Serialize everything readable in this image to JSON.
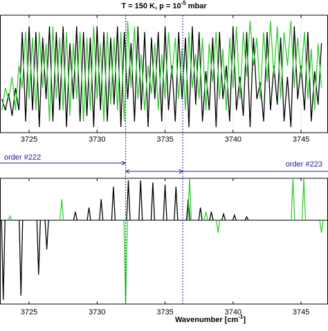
{
  "title": {
    "text": "T = 150 K, p = 10",
    "sup": "-5",
    "tail": "mbar"
  },
  "annotations": [
    {
      "text": "order #222"
    },
    {
      "text": "order #223"
    }
  ],
  "vlines": [
    3732.1,
    3736.3
  ],
  "chart_data": [
    {
      "type": "line",
      "xlim": [
        3722.86,
        3746.98
      ],
      "xticks": [
        3725,
        3730,
        3735,
        3740,
        3745
      ],
      "ylim": [
        0,
        1.05
      ],
      "grid": true,
      "x": [
        3723,
        3723.25,
        3723.5,
        3723.75,
        3724,
        3724.25,
        3724.5,
        3724.75,
        3725,
        3725.25,
        3725.5,
        3725.75,
        3726,
        3726.25,
        3726.5,
        3726.75,
        3727,
        3727.25,
        3727.5,
        3727.75,
        3728,
        3728.25,
        3728.5,
        3728.75,
        3729,
        3729.25,
        3729.5,
        3729.75,
        3730,
        3730.25,
        3730.5,
        3730.75,
        3731,
        3731.25,
        3731.5,
        3731.75,
        3732,
        3732.25,
        3732.5,
        3732.75,
        3733,
        3733.25,
        3733.5,
        3733.75,
        3734,
        3734.25,
        3734.5,
        3734.75,
        3735,
        3735.25,
        3735.5,
        3735.75,
        3736,
        3736.25,
        3736.5,
        3736.75,
        3737,
        3737.25,
        3737.5,
        3737.75,
        3738,
        3738.25,
        3738.5,
        3738.75,
        3739,
        3739.25,
        3739.5,
        3739.75,
        3740,
        3740.25,
        3740.5,
        3740.75,
        3741,
        3741.25,
        3741.5,
        3741.75,
        3742,
        3742.25,
        3742.5,
        3742.75,
        3743,
        3743.25,
        3743.5,
        3743.75,
        3744,
        3744.25,
        3744.5,
        3744.75,
        3745,
        3745.25,
        3745.5,
        3745.75,
        3746,
        3746.25,
        3746.5
      ],
      "series": [
        {
          "color": "#000000",
          "values": [
            0.3,
            0.2,
            0.35,
            0.15,
            0.4,
            0.2,
            0.9,
            0.1,
            0.95,
            0.2,
            0.9,
            0.05,
            0.85,
            0.3,
            0.95,
            0.1,
            0.9,
            0.2,
            0.95,
            0.05,
            0.8,
            0.3,
            0.95,
            0.1,
            0.9,
            0.15,
            0.85,
            0.05,
            0.95,
            0.2,
            0.9,
            0.1,
            0.85,
            0.25,
            0.95,
            0.05,
            0.9,
            0.3,
            0.8,
            0.1,
            0.95,
            0.2,
            0.9,
            0.05,
            0.85,
            0.3,
            0.9,
            0.1,
            0.95,
            0.2,
            0.6,
            0.1,
            0.9,
            0.3,
            0.85,
            0.05,
            0.95,
            0.25,
            0.9,
            0.1,
            0.55,
            0.2,
            0.85,
            0.05,
            0.9,
            0.3,
            0.6,
            0.1,
            0.95,
            0.2,
            0.5,
            0.15,
            0.9,
            0.05,
            0.85,
            0.3,
            0.45,
            0.1,
            0.9,
            0.2,
            0.6,
            0.25,
            0.85,
            0.1,
            0.5,
            0.05,
            0.95,
            0.3,
            0.6,
            0.2,
            0.9,
            0.1,
            0.55,
            0.25,
            0.8
          ]
        },
        {
          "color": "#33cc33",
          "values": [
            0.2,
            0.4,
            0.3,
            0.5,
            0.2,
            0.6,
            0.4,
            0.9,
            0.3,
            0.85,
            0.2,
            0.9,
            0.4,
            0.8,
            0.1,
            0.95,
            0.3,
            0.85,
            0.2,
            0.9,
            0.15,
            0.8,
            0.3,
            0.9,
            0.1,
            0.85,
            0.2,
            0.95,
            0.3,
            0.8,
            0.1,
            0.9,
            0.25,
            0.85,
            0.2,
            0.9,
            0.1,
            1.0,
            0.4,
            0.95,
            0.3,
            0.7,
            0.2,
            0.6,
            0.35,
            0.8,
            0.2,
            0.7,
            0.3,
            0.9,
            0.5,
            0.85,
            0.3,
            0.75,
            0.2,
            0.9,
            0.4,
            0.7,
            0.3,
            0.85,
            0.2,
            0.8,
            0.45,
            0.9,
            0.3,
            0.75,
            0.2,
            0.85,
            0.4,
            0.95,
            0.3,
            0.9,
            0.5,
            1.0,
            0.6,
            0.85,
            0.3,
            0.9,
            0.45,
            1.0,
            0.5,
            0.95,
            0.3,
            0.9,
            0.6,
            1.0,
            0.4,
            0.85,
            0.5,
            0.9,
            0.3,
            0.75,
            0.2,
            0.8,
            0.4
          ]
        }
      ]
    },
    {
      "type": "stick",
      "xlim": [
        3722.86,
        3746.98
      ],
      "xticks": [
        3725,
        3730,
        3735,
        3740,
        3745
      ],
      "ylim": [
        -2,
        1
      ],
      "xlabel": {
        "text": "Wavenumber [cm",
        "sup": "-1",
        "tail": "]"
      },
      "series": [
        {
          "color": "#000000",
          "x": [
            3723.1,
            3724.4,
            3725.7,
            3726.3,
            3728.4,
            3729.4,
            3730.3,
            3731.2,
            3732.3,
            3733.2,
            3734.1,
            3735.0,
            3735.8,
            3736.7,
            3737.6,
            3738.4,
            3739.3,
            3740.1,
            3741.0
          ],
          "values": [
            -1.9,
            -1.8,
            -1.3,
            -0.7,
            0.2,
            0.3,
            0.5,
            0.8,
            0.95,
            0.95,
            0.9,
            0.85,
            0.8,
            0.5,
            0.3,
            0.2,
            0.15,
            0.12,
            0.08
          ]
        },
        {
          "color": "#33cc33",
          "x": [
            3723.6,
            3727.4,
            3732.1,
            3736.8,
            3738.0,
            3738.9,
            3744.4,
            3745.2,
            3746.5
          ],
          "values": [
            0.1,
            0.5,
            -2,
            1.0,
            0.2,
            -0.3,
            1.0,
            1.0,
            -0.3
          ]
        }
      ]
    }
  ]
}
